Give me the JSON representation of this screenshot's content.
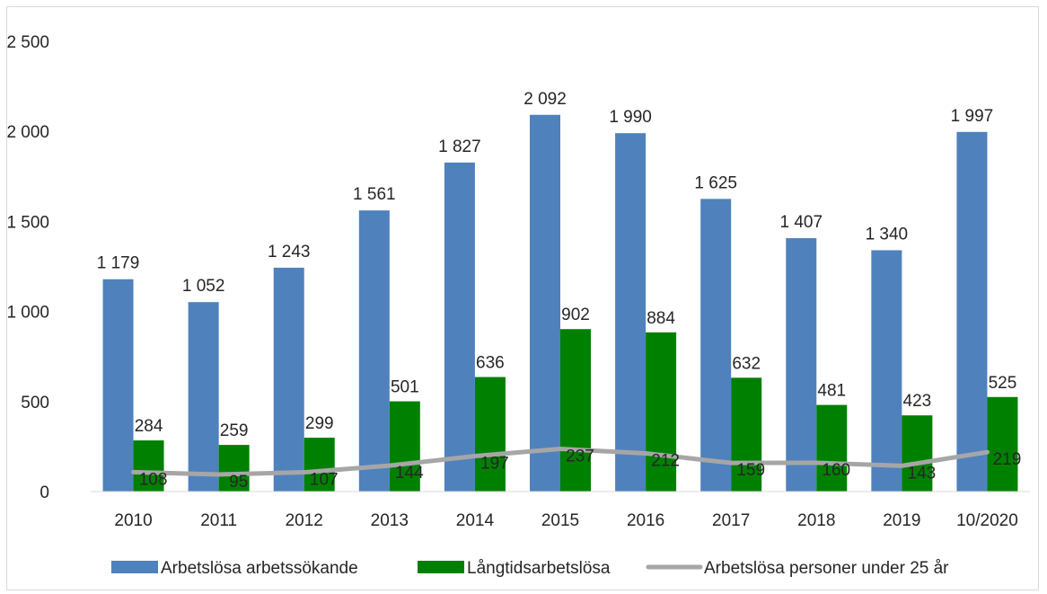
{
  "chart_data": {
    "type": "bar",
    "categories": [
      "2010",
      "2011",
      "2012",
      "2013",
      "2014",
      "2015",
      "2016",
      "2017",
      "2018",
      "2019",
      "10/2020"
    ],
    "series": [
      {
        "name": "Arbetslösa arbetssökande",
        "kind": "bar",
        "color": "#4f81bd",
        "values": [
          1179,
          1052,
          1243,
          1561,
          1827,
          2092,
          1990,
          1625,
          1407,
          1340,
          1997
        ],
        "labels": [
          "1 179",
          "1 052",
          "1 243",
          "1 561",
          "1 827",
          "2 092",
          "1 990",
          "1 625",
          "1 407",
          "1 340",
          "1 997"
        ]
      },
      {
        "name": "Långtidsarbetslösa",
        "kind": "bar",
        "color": "#008000",
        "values": [
          284,
          259,
          299,
          501,
          636,
          902,
          884,
          632,
          481,
          423,
          525
        ],
        "labels": [
          "284",
          "259",
          "299",
          "501",
          "636",
          "902",
          "884",
          "632",
          "481",
          "423",
          "525"
        ]
      },
      {
        "name": "Arbetslösa personer under 25 år",
        "kind": "line",
        "color": "#a6a6a6",
        "values": [
          108,
          95,
          107,
          144,
          197,
          237,
          212,
          159,
          160,
          143,
          219
        ],
        "labels": [
          "108",
          "95",
          "107",
          "144",
          "197",
          "237",
          "212",
          "159",
          "160",
          "143",
          "219"
        ]
      }
    ],
    "ylim": [
      0,
      2500
    ],
    "yticks": [
      0,
      500,
      1000,
      1500,
      2000,
      2500
    ],
    "ytick_labels": [
      "0",
      "500",
      "1 000",
      "1 500",
      "2 000",
      "2 500"
    ],
    "grid": false,
    "legend_position": "bottom"
  }
}
